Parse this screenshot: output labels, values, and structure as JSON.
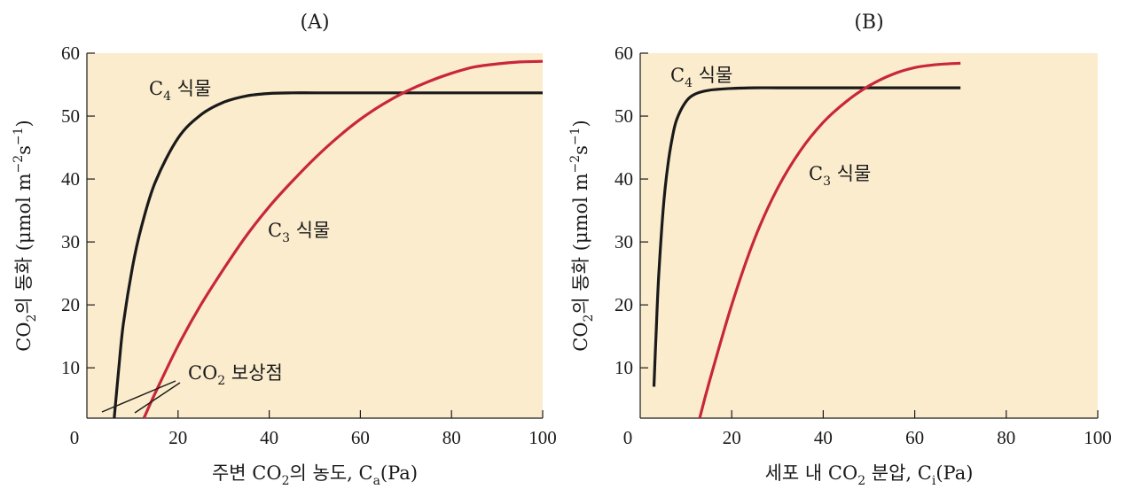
{
  "colors": {
    "plot_bg": "#fbeccd",
    "c4_line": "#1a1a1a",
    "c3_line": "#c8273b",
    "axis": "#1a1a1a"
  },
  "chart_data": [
    {
      "type": "line",
      "title": "(A)",
      "ylabel": {
        "a": "CO",
        "b": "2",
        "c": "의 동화 (μmol m",
        "d": "−2",
        "e": "s",
        "f": "−1",
        "g": ")"
      },
      "xlabel": {
        "a": "주변 CO",
        "b": "2",
        "c": "의 농도, C",
        "d": "a",
        "e": "(Pa)"
      },
      "xlim": [
        0,
        100
      ],
      "ylim": [
        2,
        60
      ],
      "xticks": [
        "0",
        "20",
        "40",
        "60",
        "80",
        "100"
      ],
      "yticks": [
        "10",
        "20",
        "30",
        "40",
        "50",
        "60"
      ],
      "ytick_values": [
        10,
        20,
        30,
        40,
        50,
        60
      ],
      "xtick_values": [
        0,
        20,
        40,
        60,
        80,
        100
      ],
      "annotations": {
        "c4": {
          "main": "C",
          "sub": "4",
          "rest": " 식물"
        },
        "c3": {
          "main": "C",
          "sub": "3",
          "rest": " 식물"
        },
        "comp": {
          "main": "CO",
          "sub": "2",
          "rest": " 보상점"
        }
      },
      "series": [
        {
          "name": "C4 식물",
          "x": [
            6,
            7,
            8,
            10,
            12,
            15,
            20,
            25,
            30,
            35,
            40,
            45,
            50,
            60,
            80,
            100
          ],
          "y": [
            2,
            10,
            17,
            26,
            32.5,
            39.5,
            46.5,
            50.2,
            52.2,
            53.2,
            53.6,
            53.7,
            53.7,
            53.7,
            53.7,
            53.7
          ]
        },
        {
          "name": "C3 식물",
          "x": [
            12.5,
            15,
            20,
            25,
            30,
            35,
            40,
            45,
            50,
            55,
            60,
            65,
            70,
            75,
            80,
            85,
            90,
            95,
            100
          ],
          "y": [
            2,
            6,
            13.5,
            20,
            25.7,
            31,
            35.6,
            39.6,
            43.3,
            46.6,
            49.5,
            51.9,
            53.9,
            55.5,
            56.8,
            57.8,
            58.3,
            58.6,
            58.7
          ]
        }
      ]
    },
    {
      "type": "line",
      "title": "(B)",
      "ylabel": {
        "a": "CO",
        "b": "2",
        "c": "의 동화 (μmol m",
        "d": "−2",
        "e": "s",
        "f": "−1",
        "g": ")"
      },
      "xlabel": {
        "a": "세포 내 CO",
        "b": "2",
        "c": " 분압, C",
        "d": "i",
        "e": "(Pa)"
      },
      "xlim": [
        0,
        100
      ],
      "ylim": [
        2,
        60
      ],
      "xticks": [
        "0",
        "20",
        "40",
        "60",
        "80",
        "100"
      ],
      "yticks": [
        "10",
        "20",
        "30",
        "40",
        "50",
        "60"
      ],
      "ytick_values": [
        10,
        20,
        30,
        40,
        50,
        60
      ],
      "xtick_values": [
        0,
        20,
        40,
        60,
        80,
        100
      ],
      "annotations": {
        "c4": {
          "main": "C",
          "sub": "4",
          "rest": " 식물"
        },
        "c3": {
          "main": "C",
          "sub": "3",
          "rest": " 식물"
        }
      },
      "series": [
        {
          "name": "C4 식물",
          "x": [
            3,
            3.5,
            4,
            5,
            6,
            7,
            8,
            10,
            12,
            15,
            20,
            25,
            30,
            40,
            50,
            60,
            70
          ],
          "y": [
            7,
            16,
            24,
            35,
            42,
            46.5,
            49.5,
            52.3,
            53.5,
            54.1,
            54.4,
            54.5,
            54.5,
            54.5,
            54.5,
            54.5,
            54.5
          ]
        },
        {
          "name": "C3 식물",
          "x": [
            13,
            15,
            20,
            25,
            30,
            35,
            40,
            45,
            50,
            55,
            60,
            65,
            70
          ],
          "y": [
            2,
            7.5,
            20,
            30.5,
            38.5,
            44.5,
            49,
            52.3,
            54.8,
            56.6,
            57.7,
            58.2,
            58.4
          ]
        }
      ]
    }
  ]
}
